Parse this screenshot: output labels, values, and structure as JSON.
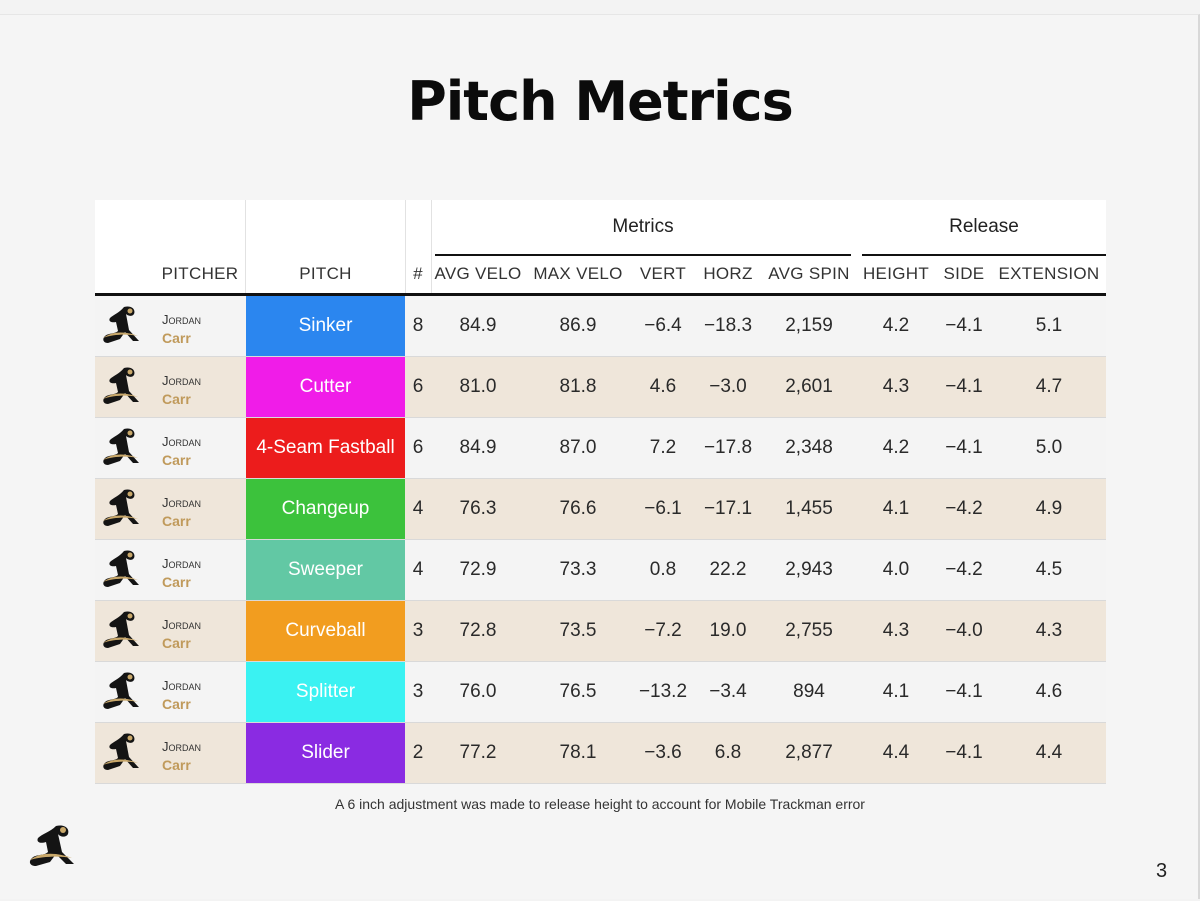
{
  "title": "Pitch Metrics",
  "groups": {
    "metrics": "Metrics",
    "release": "Release"
  },
  "columns": {
    "pitcher": "PITCHER",
    "pitch": "PITCH",
    "count": "#",
    "avg_velo": "AVG VELO",
    "max_velo": "MAX VELO",
    "vert": "VERT",
    "horz": "HORZ",
    "avg_spin": "AVG SPIN",
    "height": "HEIGHT",
    "side": "SIDE",
    "extension": "EXTENSION"
  },
  "rows": [
    {
      "first": "Jordan",
      "last": "Carr",
      "pitch": "Sinker",
      "color": "#2b86ef",
      "count": "8",
      "avg_velo": "84.9",
      "max_velo": "86.9",
      "vert": "−6.4",
      "horz": "−18.3",
      "avg_spin": "2,159",
      "height": "4.2",
      "side": "−4.1",
      "extension": "5.1"
    },
    {
      "first": "Jordan",
      "last": "Carr",
      "pitch": "Cutter",
      "color": "#f01ce8",
      "count": "6",
      "avg_velo": "81.0",
      "max_velo": "81.8",
      "vert": "4.6",
      "horz": "−3.0",
      "avg_spin": "2,601",
      "height": "4.3",
      "side": "−4.1",
      "extension": "4.7"
    },
    {
      "first": "Jordan",
      "last": "Carr",
      "pitch": "4-Seam Fastball",
      "color": "#ec1c1c",
      "count": "6",
      "avg_velo": "84.9",
      "max_velo": "87.0",
      "vert": "7.2",
      "horz": "−17.8",
      "avg_spin": "2,348",
      "height": "4.2",
      "side": "−4.1",
      "extension": "5.0"
    },
    {
      "first": "Jordan",
      "last": "Carr",
      "pitch": "Changeup",
      "color": "#3cc23c",
      "count": "4",
      "avg_velo": "76.3",
      "max_velo": "76.6",
      "vert": "−6.1",
      "horz": "−17.1",
      "avg_spin": "1,455",
      "height": "4.1",
      "side": "−4.2",
      "extension": "4.9"
    },
    {
      "first": "Jordan",
      "last": "Carr",
      "pitch": "Sweeper",
      "color": "#62c8a4",
      "count": "4",
      "avg_velo": "72.9",
      "max_velo": "73.3",
      "vert": "0.8",
      "horz": "22.2",
      "avg_spin": "2,943",
      "height": "4.0",
      "side": "−4.2",
      "extension": "4.5"
    },
    {
      "first": "Jordan",
      "last": "Carr",
      "pitch": "Curveball",
      "color": "#f29d1f",
      "count": "3",
      "avg_velo": "72.8",
      "max_velo": "73.5",
      "vert": "−7.2",
      "horz": "19.0",
      "avg_spin": "2,755",
      "height": "4.3",
      "side": "−4.0",
      "extension": "4.3"
    },
    {
      "first": "Jordan",
      "last": "Carr",
      "pitch": "Splitter",
      "color": "#3af2f2",
      "count": "3",
      "avg_velo": "76.0",
      "max_velo": "76.5",
      "vert": "−13.2",
      "horz": "−3.4",
      "avg_spin": "894",
      "height": "4.1",
      "side": "−4.1",
      "extension": "4.6"
    },
    {
      "first": "Jordan",
      "last": "Carr",
      "pitch": "Slider",
      "color": "#8a2be2",
      "count": "2",
      "avg_velo": "77.2",
      "max_velo": "78.1",
      "vert": "−3.6",
      "horz": "6.8",
      "avg_spin": "2,877",
      "height": "4.4",
      "side": "−4.1",
      "extension": "4.4"
    }
  ],
  "footnote": "A 6 inch adjustment was made to release height to account for Mobile Trackman error",
  "page_number": "3"
}
